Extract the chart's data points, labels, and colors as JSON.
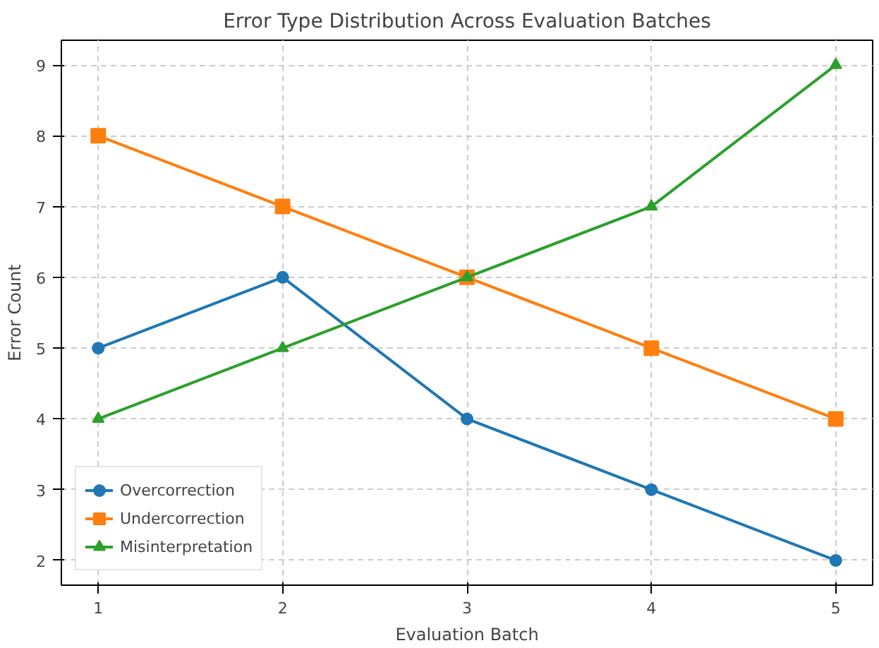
{
  "chart_data": {
    "type": "line",
    "title": "Error Type Distribution Across Evaluation Batches",
    "xlabel": "Evaluation Batch",
    "ylabel": "Error Count",
    "x": [
      1,
      2,
      3,
      4,
      5
    ],
    "series": [
      {
        "name": "Overcorrection",
        "color": "#1f77b4",
        "marker": "circle",
        "values": [
          5,
          6,
          4,
          3,
          2
        ]
      },
      {
        "name": "Undercorrection",
        "color": "#ff7f0e",
        "marker": "square",
        "values": [
          8,
          7,
          6,
          5,
          4
        ]
      },
      {
        "name": "Misinterpretation",
        "color": "#2ca02c",
        "marker": "triangle",
        "values": [
          4,
          5,
          6,
          7,
          9
        ]
      }
    ],
    "xlim": [
      0.8,
      5.2
    ],
    "ylim": [
      1.65,
      9.35
    ],
    "xticks": [
      1,
      2,
      3,
      4,
      5
    ],
    "yticks": [
      2,
      3,
      4,
      5,
      6,
      7,
      8,
      9
    ],
    "grid": true,
    "legend": "bottom left",
    "line_style": "solid"
  }
}
